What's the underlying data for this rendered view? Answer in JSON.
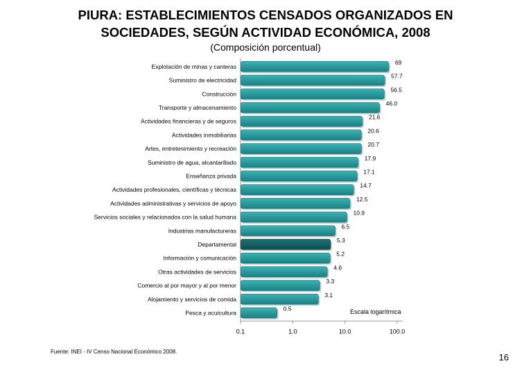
{
  "page": {
    "title_line1": "PIURA: ESTABLECIMIENTOS CENSADOS ORGANIZADOS EN",
    "title_line2": "SOCIEDADES, SEGÚN ACTIVIDAD ECONÓMICA, 2008",
    "subtitle": "(Composición porcentual)",
    "source": "Fuente: INEI - IV Censo Nacional Económico 2008.",
    "page_number": "16",
    "scale_note": "Escala logarítmica"
  },
  "colors": {
    "bar": "#3ab3b5",
    "bar_dark": "#1d7f82",
    "bar_highlight": "#1f7174",
    "bar_highlight_dark": "#0f4e50",
    "axis": "#999999"
  },
  "chart_data": {
    "type": "bar",
    "orientation": "horizontal",
    "scale": "log",
    "xlim": [
      0.1,
      100.0
    ],
    "x_ticks": [
      "0.1",
      "1.0",
      "10.0",
      "100.0"
    ],
    "highlight": "Departamental",
    "categories": [
      "Explotación de minas y canteras",
      "Suministro de electricidad",
      "Construcción",
      "Transporte y almacenamiento",
      "Actividades financieras y de seguros",
      "Actividades inmobiliarias",
      "Artes, entretenimiento y recreación",
      "Suministro de agua, alcantarillado",
      "Enseñanza privada",
      "Actividades profesionales, científicas y técnicas",
      "Actividades administrativas y servicios de apoyo",
      "Servicios sociales y relacionados con la salud humana",
      "Industrias manufactureras",
      "Departamental",
      "Información y comunicación",
      "Otras actividades de servicios",
      "Comercio al por mayor y al por menor",
      "Alojamiento y servicios de comida",
      "Pesca y acuicultura"
    ],
    "values": [
      69,
      57.7,
      56.5,
      46.0,
      21.6,
      20.6,
      20.7,
      17.9,
      17.1,
      14.7,
      12.5,
      10.9,
      6.5,
      5.3,
      5.2,
      4.6,
      3.3,
      3.1,
      0.5
    ],
    "labels": [
      "69",
      "57.7",
      "56.5",
      "46.0",
      "21.6",
      "20.6",
      "20.7",
      "17.9",
      "17.1",
      "14.7",
      "12.5",
      "10.9",
      "6.5",
      "5.3",
      "5.2",
      "4.6",
      "3.3",
      "3.1",
      "0.5"
    ]
  }
}
